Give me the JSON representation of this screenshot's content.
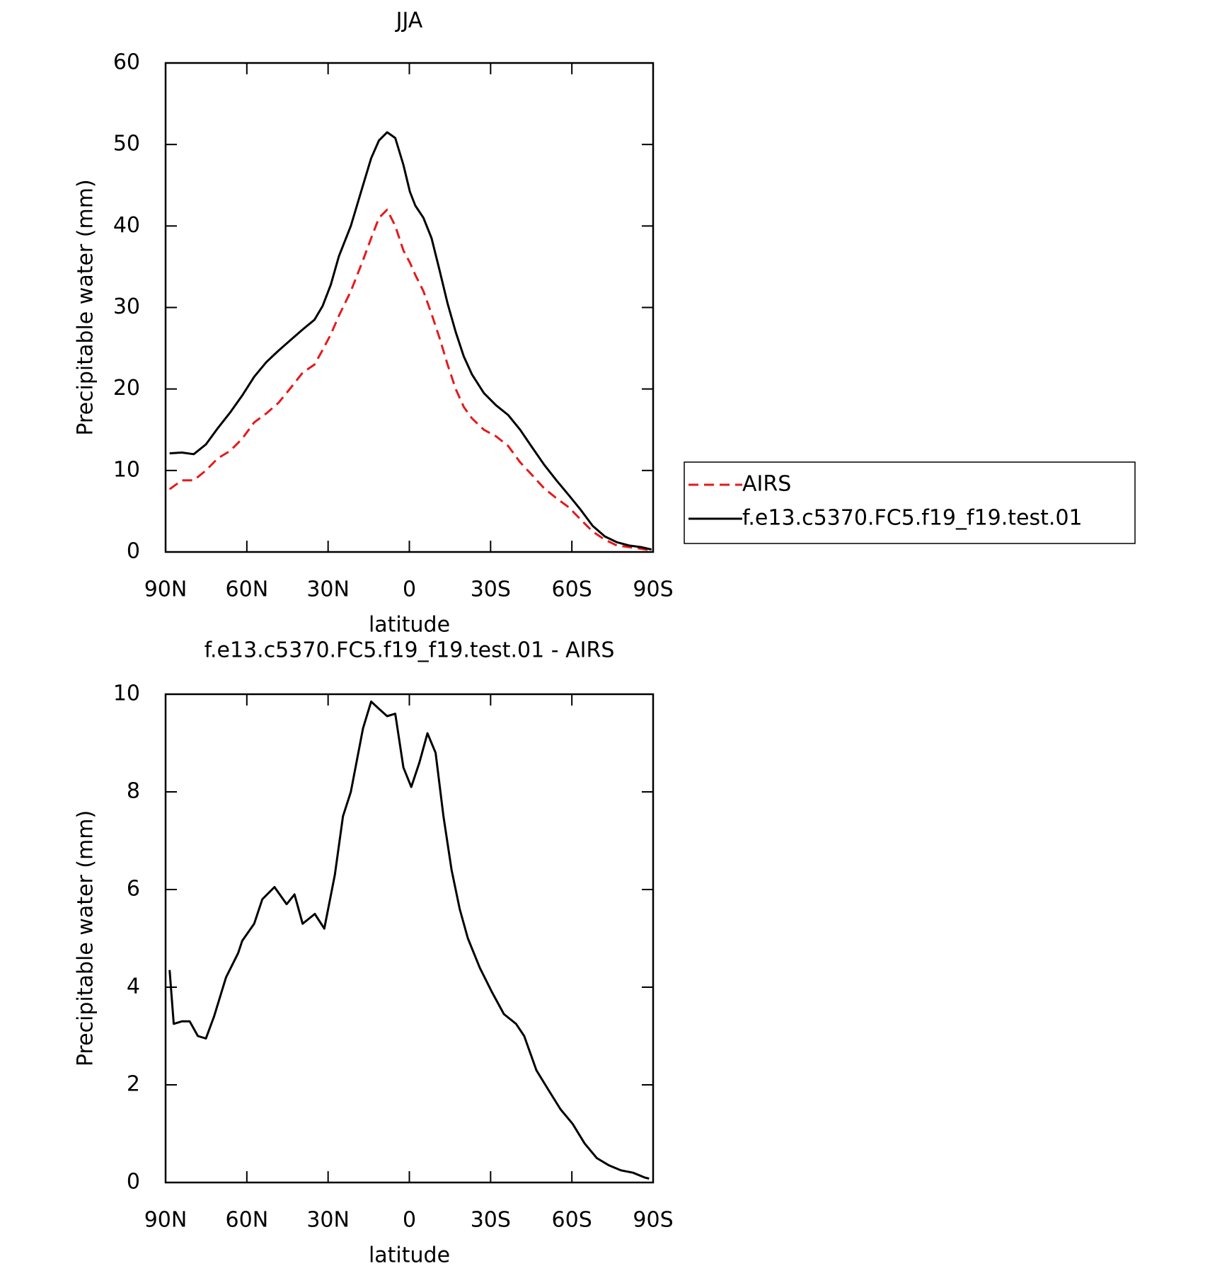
{
  "chart_data": [
    {
      "type": "line",
      "title": "JJA",
      "xlabel": "latitude",
      "ylabel": "Precipitable water (mm)",
      "x": [
        88.5,
        84.0,
        79.6,
        75.1,
        70.7,
        66.2,
        61.7,
        57.3,
        52.8,
        48.3,
        43.9,
        39.4,
        35.0,
        32.0,
        29.0,
        26.0,
        21.6,
        17.1,
        14.1,
        11.2,
        8.2,
        5.2,
        2.2,
        -0.2,
        -2.2,
        -5.2,
        -8.2,
        -11.2,
        -14.1,
        -17.1,
        -20.1,
        -23.1,
        -27.5,
        -32.0,
        -36.5,
        -40.9,
        -45.4,
        -49.8,
        -54.3,
        -58.8,
        -63.2,
        -67.7,
        -72.2,
        -76.6,
        -81.1,
        -85.5,
        -89.4
      ],
      "series": [
        {
          "name": "AIRS",
          "color": "#e41a1c",
          "linestyle": "dashed",
          "values": [
            7.7,
            8.8,
            8.8,
            10,
            11.5,
            12.4,
            13.9,
            15.9,
            17,
            18.3,
            20.1,
            22,
            23,
            24.8,
            26.7,
            29,
            32,
            35.8,
            38.5,
            41,
            42,
            40,
            37,
            35.5,
            34,
            32,
            29.2,
            26.2,
            23,
            20,
            17.8,
            16.4,
            15,
            14.2,
            13,
            11,
            9.4,
            7.8,
            6.6,
            5.5,
            4,
            2.5,
            1.5,
            0.8,
            0.6,
            0.4,
            0.2
          ]
        },
        {
          "name": "f.e13.c5370.FC5.f19_f19.test.01",
          "color": "#000000",
          "linestyle": "solid",
          "values": [
            12.1,
            12.2,
            12.0,
            13.2,
            15.2,
            17.1,
            19.2,
            21.5,
            23.3,
            24.7,
            26.0,
            27.3,
            28.5,
            30.2,
            32.8,
            36.3,
            40,
            45,
            48.3,
            50.5,
            51.5,
            50.8,
            47.5,
            44.2,
            42.5,
            41,
            38.5,
            34.5,
            30.5,
            27,
            24,
            21.8,
            19.5,
            18,
            16.8,
            15,
            12.8,
            10.7,
            8.8,
            7,
            5.2,
            3.2,
            1.9,
            1.2,
            0.8,
            0.6,
            0.3
          ]
        }
      ],
      "xlim": [
        90,
        -90
      ],
      "xticks": [
        {
          "value": 90,
          "label": "90N"
        },
        {
          "value": 60,
          "label": "60N"
        },
        {
          "value": 30,
          "label": "30N"
        },
        0,
        {
          "value": -30,
          "label": "30S"
        },
        {
          "value": -60,
          "label": "60S"
        },
        {
          "value": -90,
          "label": "90S"
        }
      ],
      "ylim": [
        0,
        60
      ],
      "yticks": [
        0,
        10,
        20,
        30,
        40,
        50,
        60
      ],
      "legend": "right"
    },
    {
      "type": "line",
      "title": "f.e13.c5370.FC5.f19_f19.test.01 - AIRS",
      "xlabel": "latitude",
      "ylabel": "Precipitable water (mm)",
      "x": [
        88.5,
        87.0,
        84.0,
        81.1,
        78.1,
        75.1,
        72.1,
        67.7,
        63.2,
        61.7,
        57.3,
        54.3,
        49.8,
        45.3,
        42.4,
        39.4,
        34.9,
        31.4,
        27.5,
        24.5,
        21.6,
        17.1,
        14.1,
        11.2,
        8.2,
        5.2,
        2.2,
        -0.7,
        -3.7,
        -6.7,
        -9.7,
        -12.6,
        -15.6,
        -18.6,
        -21.6,
        -26.0,
        -30.5,
        -34.9,
        -39.4,
        -42.4,
        -46.9,
        -51.3,
        -55.8,
        -60.3,
        -64.7,
        -69.2,
        -73.7,
        -78.1,
        -82.6,
        -87.0,
        -88.5
      ],
      "values": [
        4.35,
        3.25,
        3.3,
        3.3,
        3.0,
        2.95,
        3.4,
        4.2,
        4.7,
        4.95,
        5.3,
        5.8,
        6.05,
        5.7,
        5.9,
        5.3,
        5.5,
        5.2,
        6.3,
        7.5,
        8.0,
        9.3,
        9.85,
        9.7,
        9.55,
        9.6,
        8.5,
        8.1,
        8.6,
        9.2,
        8.8,
        7.5,
        6.4,
        5.6,
        5.0,
        4.4,
        3.9,
        3.45,
        3.25,
        3.0,
        2.3,
        1.9,
        1.5,
        1.2,
        0.8,
        0.5,
        0.35,
        0.25,
        0.2,
        0.1,
        0.08
      ],
      "color": "#000000",
      "xlim": [
        90,
        -90
      ],
      "xticks": [
        {
          "value": 90,
          "label": "90N"
        },
        {
          "value": 60,
          "label": "60N"
        },
        {
          "value": 30,
          "label": "30N"
        },
        0,
        {
          "value": -30,
          "label": "30S"
        },
        {
          "value": -60,
          "label": "60S"
        },
        {
          "value": -90,
          "label": "90S"
        }
      ],
      "ylim": [
        0,
        10
      ],
      "yticks": [
        0,
        2,
        4,
        6,
        8,
        10
      ]
    }
  ]
}
